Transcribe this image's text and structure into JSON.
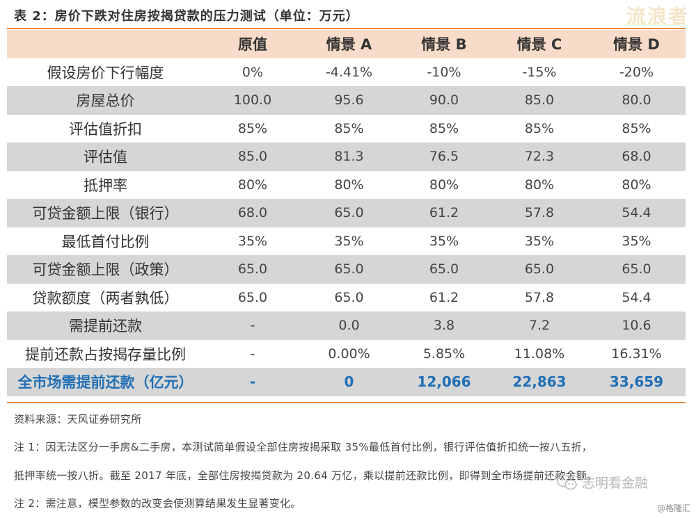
{
  "title": "表 2：房价下跌对住房按揭贷款的压力测试（单位：万元）",
  "watermark_top": "流浪者",
  "table": {
    "headers": [
      "",
      "原值",
      "情景 A",
      "情景 B",
      "情景 C",
      "情景 D"
    ],
    "rows": [
      {
        "label": "假设房价下行幅度",
        "values": [
          "0%",
          "-4.41%",
          "-10%",
          "-15%",
          "-20%"
        ]
      },
      {
        "label": "房屋总价",
        "values": [
          "100.0",
          "95.6",
          "90.0",
          "85.0",
          "80.0"
        ]
      },
      {
        "label": "评估值折扣",
        "values": [
          "85%",
          "85%",
          "85%",
          "85%",
          "85%"
        ]
      },
      {
        "label": "评估值",
        "values": [
          "85.0",
          "81.3",
          "76.5",
          "72.3",
          "68.0"
        ]
      },
      {
        "label": "抵押率",
        "values": [
          "80%",
          "80%",
          "80%",
          "80%",
          "80%"
        ]
      },
      {
        "label": "可贷金额上限（银行）",
        "values": [
          "68.0",
          "65.0",
          "61.2",
          "57.8",
          "54.4"
        ]
      },
      {
        "label": "最低首付比例",
        "values": [
          "35%",
          "35%",
          "35%",
          "35%",
          "35%"
        ]
      },
      {
        "label": "可贷金额上限（政策）",
        "values": [
          "65.0",
          "65.0",
          "65.0",
          "65.0",
          "65.0"
        ]
      },
      {
        "label": "贷款额度（两者孰低）",
        "values": [
          "65.0",
          "65.0",
          "61.2",
          "57.8",
          "54.4"
        ]
      },
      {
        "label": "需提前还款",
        "values": [
          "-",
          "0.0",
          "3.8",
          "7.2",
          "10.6"
        ]
      },
      {
        "label": "提前还款占按揭存量比例",
        "values": [
          "-",
          "0.00%",
          "5.85%",
          "11.08%",
          "16.31%"
        ]
      },
      {
        "label": "全市场需提前还款（亿元）",
        "values": [
          "-",
          "0",
          "12,066",
          "22,863",
          "33,659"
        ]
      }
    ]
  },
  "source": "资料来源：天风证券研究所",
  "note1_line1": "注 1：因无法区分一手房&二手房，本测试简单假设全部住房按揭采取 35%最低首付比例，银行评估值折扣统一按八五折，",
  "note1_line2": "抵押率统一按八折。截至 2017 年底，全部住房按揭贷款为 20.64 万亿，乘以提前还款比例，即得到全市场提前还款金额。",
  "note2": "注 2：需注意，模型参数的改变会使测算结果发生显著变化。",
  "watermark_bottom": "志明看金融",
  "watermark_corner": "@格隆汇"
}
